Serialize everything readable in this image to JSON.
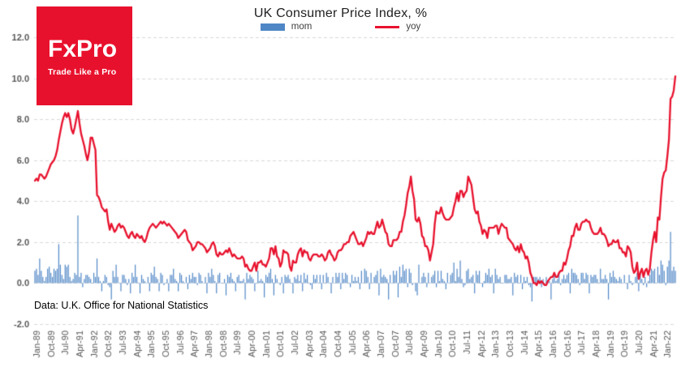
{
  "header": {
    "title": "UK Consumer Price Index, %"
  },
  "logo": {
    "name": "FxPro",
    "tagline": "Trade Like a Pro",
    "bg_color": "#e8112d",
    "text_color": "#ffffff"
  },
  "legend": {
    "items": [
      {
        "label": "mom",
        "color": "#4f86c6",
        "type": "bar"
      },
      {
        "label": "yoy",
        "color": "#e8112d",
        "type": "line"
      }
    ]
  },
  "footnote": "Data: U.K. Office for National Statistics",
  "colors": {
    "grid": "#d9d9d9",
    "axis_text": "#595959",
    "background": "#ffffff"
  },
  "chart_data": {
    "type": "bar+line",
    "title": "UK Consumer Price Index, %",
    "x_unit": "month",
    "x_start": "Jan-1989",
    "x_end": "Jul-2022",
    "ylim": [
      -2,
      12
    ],
    "grid": "horizontal-dashed",
    "legend_position": "top",
    "y_ticks": {
      "values": [
        12,
        10,
        8,
        6,
        4,
        2,
        0,
        -2
      ],
      "labels": [
        "12.0",
        "10.0",
        "8.0",
        "6.0",
        "4.0",
        "2.0",
        "0.0",
        "-2.0"
      ]
    },
    "x_tick_interval": 9,
    "x_tick_labels": [
      "Jan-89",
      "Oct-89",
      "Jul-90",
      "Apr-91",
      "Jan-92",
      "Oct-92",
      "Jul-93",
      "Apr-94",
      "Jan-95",
      "Oct-95",
      "Jul-96",
      "Apr-97",
      "Jan-98",
      "Oct-98",
      "Jul-99",
      "Apr-00",
      "Jan-01",
      "Oct-01",
      "Jul-02",
      "Apr-03",
      "Jan-04",
      "Oct-04",
      "Jul-05",
      "Apr-06",
      "Jan-07",
      "Oct-07",
      "Jul-08",
      "Apr-09",
      "Jan-10",
      "Oct-10",
      "Jul-11",
      "Apr-12",
      "Jan-13",
      "Oct-13",
      "Jul-14",
      "Apr-15",
      "Jan-16",
      "Oct-16",
      "Jul-17",
      "Apr-18",
      "Jan-19",
      "Oct-19",
      "Jul-20",
      "Apr-21",
      "Jan-22"
    ],
    "series": [
      {
        "name": "mom",
        "type": "bar",
        "color": "#4f86c6",
        "values": [
          0.6,
          0.7,
          0.4,
          1.2,
          0.6,
          0.3,
          0.1,
          0.3,
          0.7,
          0.8,
          0.5,
          0.3,
          0.7,
          0.6,
          0.7,
          1.9,
          0.9,
          0.4,
          0.2,
          0.9,
          0.8,
          0.9,
          0.3,
          0.1,
          0.2,
          0.5,
          0.4,
          3.3,
          0.3,
          0.5,
          -0.2,
          0.2,
          0.4,
          0.4,
          0.3,
          0.2,
          0.0,
          0.5,
          0.3,
          1.2,
          0.3,
          0.1,
          -0.4,
          0.1,
          0.4,
          0.3,
          -0.1,
          -0.2,
          -0.8,
          0.6,
          0.3,
          0.9,
          0.3,
          0.0,
          -0.4,
          0.4,
          0.4,
          0.2,
          -0.1,
          0.2,
          -0.5,
          0.5,
          0.3,
          0.9,
          0.3,
          0.0,
          -0.5,
          0.4,
          0.2,
          0.1,
          0.0,
          0.3,
          -0.4,
          0.5,
          0.4,
          0.8,
          0.3,
          0.2,
          -0.4,
          0.5,
          0.4,
          -0.1,
          0.0,
          0.2,
          -0.4,
          0.4,
          0.4,
          0.7,
          0.2,
          0.1,
          -0.4,
          0.5,
          0.4,
          0.1,
          0.0,
          0.3,
          -0.3,
          0.4,
          0.2,
          0.5,
          0.3,
          0.3,
          -0.1,
          0.5,
          0.4,
          0.1,
          0.0,
          0.3,
          -0.5,
          0.5,
          0.3,
          0.7,
          0.4,
          0.1,
          -0.5,
          0.4,
          0.5,
          0.0,
          0.0,
          0.2,
          -0.6,
          0.4,
          0.3,
          0.5,
          0.2,
          0.1,
          -0.4,
          0.3,
          0.4,
          0.1,
          0.1,
          0.2,
          -0.8,
          0.5,
          0.2,
          0.4,
          0.3,
          0.2,
          -0.4,
          0.0,
          0.6,
          0.1,
          0.2,
          0.1,
          -0.7,
          0.4,
          0.3,
          0.5,
          0.7,
          0.2,
          -0.6,
          0.4,
          0.2,
          0.0,
          -0.1,
          0.3,
          -0.5,
          0.4,
          0.3,
          0.4,
          0.2,
          0.0,
          -0.5,
          0.3,
          0.2,
          0.4,
          0.1,
          0.4,
          -0.4,
          0.5,
          0.2,
          0.4,
          0.0,
          -0.1,
          -0.3,
          0.4,
          0.2,
          0.4,
          0.0,
          0.4,
          -0.3,
          0.4,
          0.0,
          0.5,
          0.3,
          0.0,
          -0.5,
          0.3,
          0.0,
          0.5,
          0.3,
          0.5,
          -0.3,
          0.5,
          0.2,
          0.5,
          0.4,
          0.0,
          -0.2,
          0.4,
          0.1,
          0.3,
          0.1,
          0.3,
          -0.3,
          0.6,
          0.0,
          0.7,
          0.6,
          0.3,
          -0.3,
          0.5,
          0.0,
          0.3,
          0.4,
          0.6,
          -0.6,
          0.7,
          0.3,
          0.4,
          0.3,
          0.2,
          -0.8,
          0.4,
          0.0,
          0.6,
          0.4,
          0.6,
          -0.7,
          0.8,
          0.3,
          0.9,
          0.6,
          0.7,
          -0.2,
          0.7,
          0.5,
          -0.1,
          0.0,
          -0.4,
          -0.6,
          0.9,
          0.0,
          0.3,
          0.5,
          0.3,
          -0.2,
          0.5,
          0.0,
          0.3,
          0.4,
          0.6,
          -0.2,
          0.6,
          0.1,
          0.6,
          0.2,
          0.1,
          -0.3,
          0.5,
          0.0,
          0.4,
          0.5,
          1.0,
          0.1,
          0.7,
          0.3,
          1.1,
          0.2,
          -0.2,
          -0.1,
          0.6,
          0.7,
          0.2,
          0.3,
          0.4,
          -0.5,
          0.6,
          0.4,
          0.6,
          0.0,
          -0.2,
          0.1,
          0.5,
          0.4,
          0.7,
          0.3,
          0.4,
          -0.5,
          0.7,
          0.4,
          0.2,
          0.3,
          0.0,
          0.0,
          0.4,
          0.4,
          0.2,
          0.2,
          0.3,
          -0.6,
          0.5,
          0.3,
          0.4,
          0.0,
          0.4,
          -0.3,
          0.3,
          0.1,
          0.3,
          -0.1,
          -0.2,
          -0.9,
          0.3,
          0.3,
          0.3,
          0.2,
          0.3,
          -0.2,
          0.2,
          0.0,
          0.3,
          0.1,
          0.1,
          -0.8,
          0.2,
          0.5,
          0.1,
          0.2,
          0.5,
          -0.1,
          0.2,
          0.4,
          0.2,
          0.4,
          0.5,
          -0.5,
          0.7,
          0.5,
          0.5,
          0.4,
          0.2,
          -0.1,
          0.5,
          0.5,
          0.2,
          0.5,
          0.4,
          -0.5,
          0.4,
          0.3,
          0.4,
          0.4,
          0.2,
          0.0,
          0.7,
          0.2,
          0.2,
          0.4,
          0.2,
          -0.8,
          0.5,
          0.3,
          0.6,
          0.3,
          0.2,
          0.1,
          0.3,
          0.2,
          0.0,
          0.4,
          0.0,
          -0.3,
          0.4,
          0.1,
          -0.1,
          0.0,
          0.3,
          0.5,
          -0.4,
          0.5,
          0.2,
          -0.1,
          0.3,
          -0.2,
          0.1,
          0.4,
          0.7,
          0.6,
          0.7,
          0.0,
          0.8,
          0.4,
          1.1,
          0.9,
          0.6,
          -0.1,
          0.8,
          1.1,
          2.5,
          0.6,
          0.8,
          0.6
        ]
      },
      {
        "name": "yoy",
        "type": "line",
        "color": "#e8112d",
        "values": [
          5.0,
          5.1,
          5.0,
          5.3,
          5.3,
          5.2,
          5.1,
          5.2,
          5.4,
          5.6,
          5.8,
          5.9,
          6.0,
          6.2,
          6.5,
          7.0,
          7.4,
          7.8,
          8.1,
          8.3,
          8.1,
          8.3,
          8.0,
          7.5,
          7.3,
          7.6,
          8.0,
          8.4,
          7.8,
          7.3,
          7.0,
          6.7,
          6.3,
          6.0,
          6.4,
          7.1,
          7.1,
          6.8,
          6.5,
          4.3,
          4.2,
          4.0,
          3.7,
          3.6,
          3.5,
          3.6,
          3.0,
          2.6,
          2.9,
          2.7,
          2.5,
          2.6,
          2.8,
          2.9,
          2.7,
          2.8,
          2.7,
          2.5,
          2.3,
          2.2,
          2.4,
          2.5,
          2.3,
          2.2,
          2.4,
          2.3,
          2.2,
          2.3,
          2.1,
          2.0,
          2.2,
          2.5,
          2.7,
          2.8,
          2.9,
          2.8,
          2.7,
          2.8,
          2.9,
          3.0,
          2.9,
          3.0,
          2.9,
          2.8,
          2.9,
          2.8,
          2.7,
          2.6,
          2.5,
          2.4,
          2.2,
          2.3,
          2.4,
          2.5,
          2.6,
          2.5,
          2.1,
          2.0,
          1.9,
          1.6,
          1.7,
          1.8,
          2.0,
          2.0,
          1.9,
          1.9,
          1.8,
          1.7,
          1.5,
          1.6,
          1.7,
          1.9,
          2.0,
          1.8,
          1.4,
          1.3,
          1.5,
          1.4,
          1.4,
          1.5,
          1.6,
          1.5,
          1.7,
          1.5,
          1.3,
          1.4,
          1.3,
          1.2,
          1.2,
          1.2,
          1.3,
          1.2,
          0.8,
          0.9,
          0.7,
          0.6,
          0.6,
          0.8,
          1.0,
          0.6,
          1.0,
          1.0,
          1.1,
          0.9,
          0.9,
          0.8,
          1.0,
          1.2,
          1.7,
          1.7,
          1.4,
          1.8,
          1.3,
          1.2,
          0.8,
          1.0,
          1.6,
          1.5,
          1.5,
          1.4,
          0.8,
          0.6,
          1.1,
          1.0,
          1.0,
          1.4,
          1.6,
          1.7,
          1.3,
          1.6,
          1.5,
          1.5,
          1.2,
          1.1,
          1.3,
          1.4,
          1.4,
          1.4,
          1.3,
          1.3,
          1.4,
          1.3,
          1.1,
          1.2,
          1.5,
          1.6,
          1.4,
          1.3,
          1.1,
          1.2,
          1.5,
          1.6,
          1.6,
          1.7,
          1.9,
          1.9,
          2.0,
          2.0,
          2.3,
          2.4,
          2.5,
          2.3,
          2.1,
          1.9,
          1.9,
          2.0,
          1.8,
          2.0,
          2.2,
          2.5,
          2.4,
          2.5,
          2.4,
          2.4,
          2.7,
          3.0,
          2.7,
          2.8,
          3.1,
          2.8,
          2.5,
          2.4,
          1.9,
          1.8,
          1.8,
          2.1,
          2.1,
          2.1,
          2.2,
          2.5,
          2.5,
          3.0,
          3.3,
          3.8,
          4.4,
          4.7,
          5.2,
          4.5,
          4.1,
          3.1,
          3.0,
          3.2,
          2.9,
          2.3,
          2.2,
          1.8,
          1.8,
          1.6,
          1.1,
          1.5,
          1.9,
          2.9,
          3.5,
          3.4,
          3.4,
          3.7,
          3.4,
          3.2,
          3.1,
          3.1,
          3.1,
          3.2,
          3.3,
          3.7,
          4.0,
          4.4,
          4.0,
          4.5,
          4.5,
          4.2,
          4.4,
          4.5,
          5.2,
          5.0,
          4.8,
          4.2,
          3.6,
          3.4,
          3.5,
          3.0,
          2.8,
          2.4,
          2.6,
          2.5,
          2.2,
          2.7,
          2.7,
          2.7,
          2.7,
          2.8,
          2.8,
          2.4,
          2.7,
          2.9,
          2.8,
          2.7,
          2.7,
          2.2,
          2.1,
          2.0,
          1.9,
          1.7,
          1.6,
          1.8,
          1.5,
          1.9,
          1.6,
          1.5,
          1.2,
          1.3,
          1.0,
          0.5,
          0.3,
          0.0,
          0.0,
          -0.1,
          0.1,
          0.0,
          0.1,
          0.0,
          -0.1,
          -0.1,
          0.1,
          0.2,
          0.3,
          0.3,
          0.5,
          0.3,
          0.3,
          0.5,
          0.6,
          0.6,
          1.0,
          0.9,
          1.2,
          1.6,
          1.8,
          2.3,
          2.3,
          2.7,
          2.9,
          2.6,
          2.6,
          2.9,
          3.0,
          3.0,
          3.1,
          3.0,
          3.0,
          2.7,
          2.5,
          2.4,
          2.4,
          2.4,
          2.5,
          2.7,
          2.4,
          2.4,
          2.3,
          2.1,
          1.8,
          1.9,
          1.9,
          2.1,
          2.0,
          2.0,
          2.1,
          1.7,
          1.7,
          1.5,
          1.5,
          1.3,
          1.8,
          1.7,
          1.5,
          0.8,
          0.5,
          0.6,
          1.0,
          0.2,
          0.5,
          0.7,
          0.3,
          0.6,
          0.7,
          0.4,
          0.7,
          1.5,
          2.1,
          2.5,
          2.0,
          3.2,
          3.1,
          4.2,
          5.1,
          5.4,
          5.5,
          6.2,
          7.0,
          9.0,
          9.1,
          9.4,
          10.1
        ]
      }
    ]
  }
}
